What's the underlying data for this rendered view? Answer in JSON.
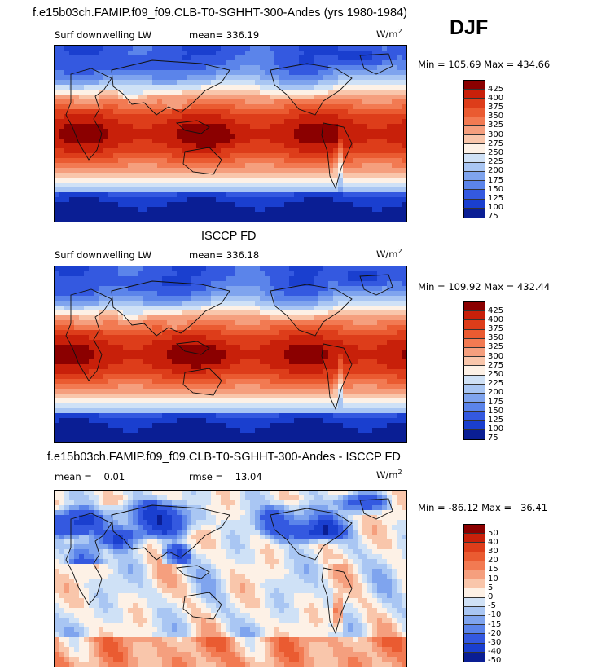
{
  "season": "DJF",
  "chart_data": [
    {
      "type": "heatmap",
      "title": "f.e15b03ch.FAMIP.f09_f09.CLB-T0-SGHHT-300-Andes (yrs 1980-1984)",
      "variable": "Surf downwelling LW",
      "stat_text": "mean= 336.19",
      "units_base": "W/m",
      "units_exp": "2",
      "range_text": "Min = 105.69 Max = 434.66",
      "min": 105.69,
      "max": 434.66,
      "mean": 336.19,
      "colorbar_levels": [
        "425",
        "400",
        "375",
        "350",
        "325",
        "300",
        "275",
        "250",
        "225",
        "200",
        "175",
        "150",
        "125",
        "100",
        "75"
      ],
      "colorbar_colors": [
        "#8b0000",
        "#c8200a",
        "#dd3d1a",
        "#ea5b31",
        "#f27a52",
        "#f59f7e",
        "#f9c6ab",
        "#fdf1e6",
        "#cfe1f6",
        "#a9c6f3",
        "#7fa4ee",
        "#5b84ea",
        "#3459e0",
        "#1a3fcf",
        "#0a1e94"
      ]
    },
    {
      "type": "heatmap",
      "title": "ISCCP FD",
      "variable": "Surf downwelling LW",
      "stat_text": "mean= 336.18",
      "units_base": "W/m",
      "units_exp": "2",
      "range_text": "Min = 109.92 Max = 432.44",
      "min": 109.92,
      "max": 432.44,
      "mean": 336.18,
      "colorbar_levels": [
        "425",
        "400",
        "375",
        "350",
        "325",
        "300",
        "275",
        "250",
        "225",
        "200",
        "175",
        "150",
        "125",
        "100",
        "75"
      ],
      "colorbar_colors": [
        "#8b0000",
        "#c8200a",
        "#dd3d1a",
        "#ea5b31",
        "#f27a52",
        "#f59f7e",
        "#f9c6ab",
        "#fdf1e6",
        "#cfe1f6",
        "#a9c6f3",
        "#7fa4ee",
        "#5b84ea",
        "#3459e0",
        "#1a3fcf",
        "#0a1e94"
      ]
    },
    {
      "type": "heatmap",
      "title": "f.e15b03ch.FAMIP.f09_f09.CLB-T0-SGHHT-300-Andes - ISCCP FD",
      "variable": "mean =    0.01",
      "stat_text": "rmse =    13.04",
      "units_base": "W/m",
      "units_exp": "2",
      "range_text": "Min = -86.12 Max =   36.41",
      "min": -86.12,
      "max": 36.41,
      "mean": 0.01,
      "rmse": 13.04,
      "colorbar_levels": [
        "50",
        "40",
        "30",
        "20",
        "15",
        "10",
        "5",
        "0",
        "-5",
        "-10",
        "-15",
        "-20",
        "-30",
        "-40",
        "-50"
      ],
      "colorbar_colors": [
        "#8b0000",
        "#c8200a",
        "#dd3d1a",
        "#ea5b31",
        "#f27a52",
        "#f59f7e",
        "#f9c6ab",
        "#fdf1e6",
        "#cfe1f6",
        "#a9c6f3",
        "#7fa4ee",
        "#5b84ea",
        "#3459e0",
        "#1a3fcf",
        "#0a1e94"
      ]
    }
  ]
}
